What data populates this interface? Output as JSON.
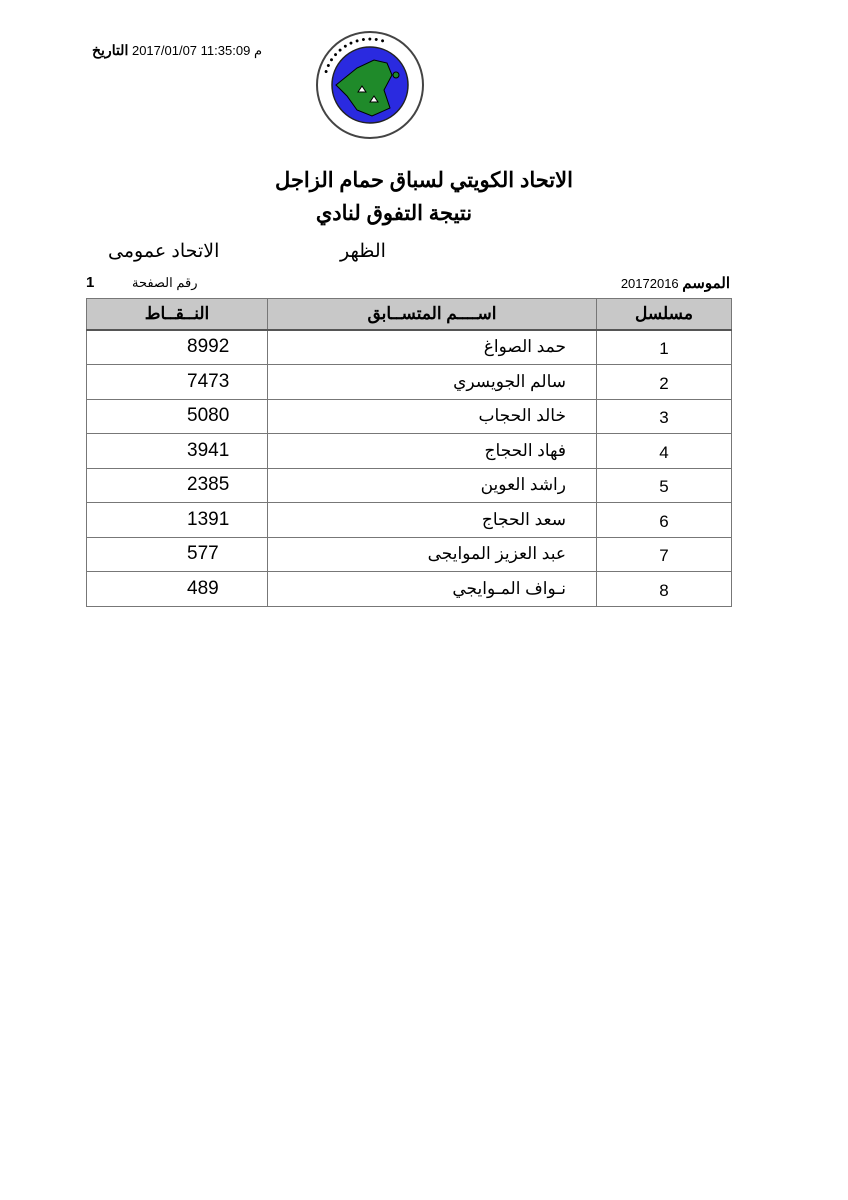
{
  "header": {
    "date_label": "التاريخ",
    "date_value": "11:35:09 2017/01/07",
    "ampm": "م",
    "logo_text": "الاتحاد الكويتي لسباق حمام الزاجل - KUWAIT FEDERATION FOR RACING PIGEON"
  },
  "title": "الاتحاد الكويتي لسباق حمام الزاجل",
  "subtitle": "نتيجة التفوق لنادي",
  "region": "الاتحاد عمومى",
  "loft": "الظهر",
  "page_label": "رقم الصفحة",
  "page_number": "1",
  "season_label": "الموسم",
  "season_value": "20172016",
  "table": {
    "headers": {
      "serial": "مسلسل",
      "name": "اســــم المتســابق",
      "points": "النــقــاط"
    },
    "rows": [
      {
        "serial": "1",
        "name": "حمد الصواغ",
        "points": "8992"
      },
      {
        "serial": "2",
        "name": "سالم الجويسري",
        "points": "7473"
      },
      {
        "serial": "3",
        "name": "خالد الحجاب",
        "points": "5080"
      },
      {
        "serial": "4",
        "name": "فهاد الحجاج",
        "points": "3941"
      },
      {
        "serial": "5",
        "name": "راشد العوين",
        "points": "2385"
      },
      {
        "serial": "6",
        "name": "سعد الحجاج",
        "points": "1391"
      },
      {
        "serial": "7",
        "name": "عبد العزيز الموايجى",
        "points": "577"
      },
      {
        "serial": "8",
        "name": "نـواف المـوايجي",
        "points": "489"
      }
    ]
  }
}
